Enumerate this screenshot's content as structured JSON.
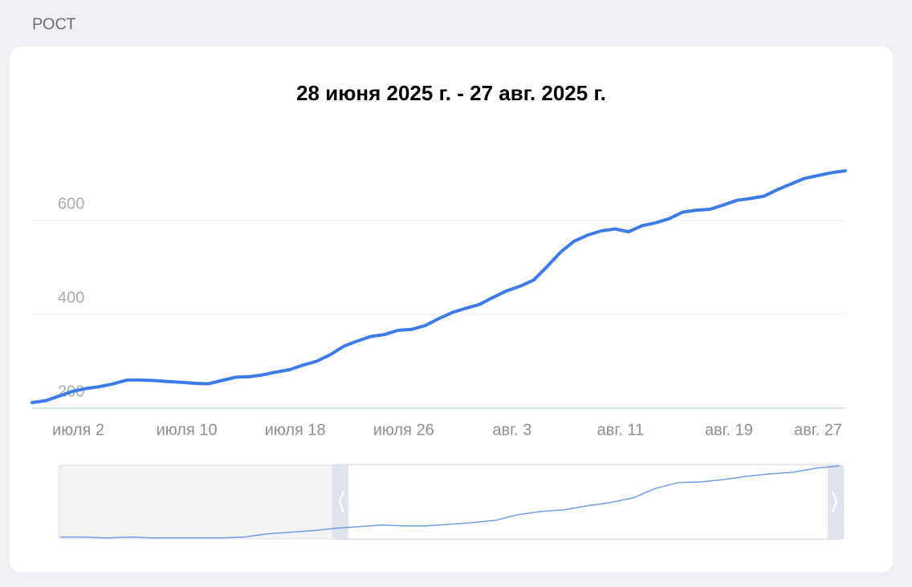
{
  "section_title": "РОСТ",
  "chart_data": [
    {
      "type": "line",
      "title": "28 июня 2025 г. - 27 авг. 2025 г.",
      "categories": [
        null,
        null,
        null,
        null,
        "июля 2",
        null,
        null,
        null,
        null,
        null,
        null,
        null,
        "июля 10",
        null,
        null,
        null,
        null,
        null,
        null,
        null,
        "июля 18",
        null,
        null,
        null,
        null,
        null,
        null,
        null,
        "июля 26",
        null,
        null,
        null,
        null,
        null,
        null,
        null,
        "авг. 3",
        null,
        null,
        null,
        null,
        null,
        null,
        null,
        "авг. 11",
        null,
        null,
        null,
        null,
        null,
        null,
        null,
        "авг. 19",
        null,
        null,
        null,
        null,
        null,
        null,
        null,
        "авг. 27"
      ],
      "series": [
        {
          "color": "#3d7be8",
          "values": [
            212,
            216,
            226,
            236,
            242,
            246,
            252,
            260,
            260,
            259,
            257,
            255,
            253,
            252,
            259,
            266,
            267,
            271,
            277,
            282,
            292,
            300,
            314,
            332,
            343,
            353,
            357,
            366,
            368,
            376,
            391,
            404,
            413,
            421,
            436,
            450,
            460,
            473,
            502,
            533,
            556,
            569,
            578,
            582,
            576,
            589,
            595,
            604,
            618,
            622,
            624,
            633,
            643,
            647,
            652,
            666,
            678,
            690,
            696,
            702,
            706
          ]
        }
      ],
      "ylim": [
        200,
        800
      ],
      "yticks": [
        200,
        400,
        600
      ],
      "grid": true
    },
    {
      "type": "line",
      "series": [
        {
          "color": "#6f9de8",
          "values": [
            135,
            135,
            128,
            135,
            128,
            128,
            128,
            128,
            135,
            160,
            173,
            186,
            205,
            218,
            231,
            224,
            224,
            237,
            250,
            269,
            314,
            340,
            352,
            384,
            410,
            448,
            525,
            570,
            576,
            595,
            621,
            640,
            653,
            685,
            704
          ]
        }
      ],
      "ylim": [
        120,
        710
      ]
    }
  ]
}
